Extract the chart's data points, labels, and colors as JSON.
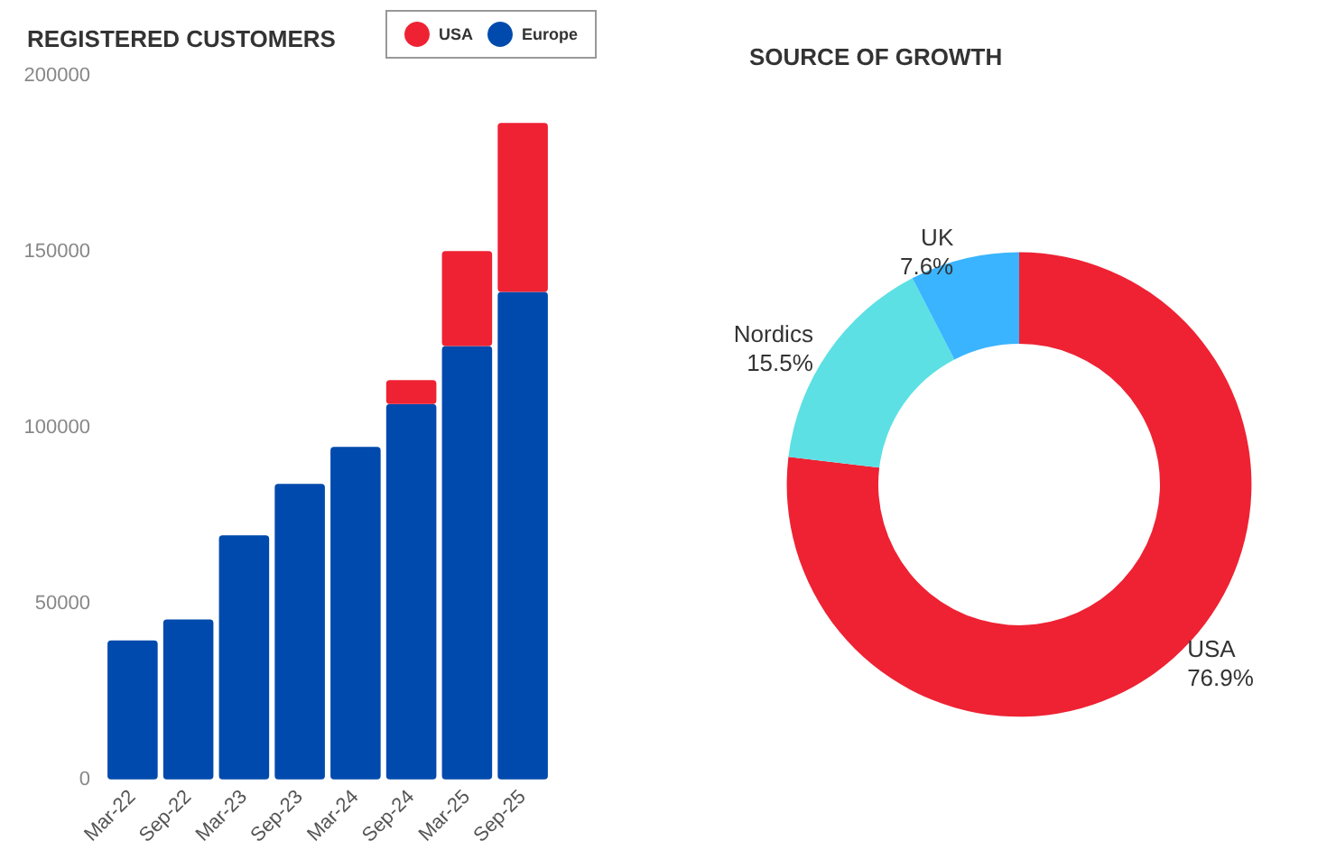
{
  "chart_data": [
    {
      "type": "bar",
      "title": "REGISTERED CUSTOMERS",
      "stacked": true,
      "categories": [
        "Mar-22",
        "Sep-22",
        "Mar-23",
        "Sep-23",
        "Mar-24",
        "Sep-24",
        "Mar-25",
        "Sep-25"
      ],
      "series": [
        {
          "name": "Europe",
          "color": "#004aad",
          "values": [
            39500,
            45500,
            69400,
            84000,
            94500,
            106700,
            123200,
            138600
          ]
        },
        {
          "name": "USA",
          "color": "#ee2233",
          "values": [
            null,
            null,
            null,
            null,
            null,
            6800,
            27000,
            48000
          ]
        }
      ],
      "ylim": [
        0,
        200000
      ],
      "yticks": [
        0,
        50000,
        100000,
        150000,
        200000
      ],
      "grid": false,
      "legend": "top right"
    },
    {
      "type": "donut",
      "title": "SOURCE OF GROWTH",
      "categories": [
        "USA",
        "Nordics",
        "UK"
      ],
      "values": [
        76.9,
        15.5,
        7.6
      ],
      "colors": [
        "#ee2233",
        "#5ce0e4",
        "#3ab4ff"
      ],
      "value_labels": [
        "76.9%",
        "15.5%",
        "7.6%"
      ]
    }
  ]
}
